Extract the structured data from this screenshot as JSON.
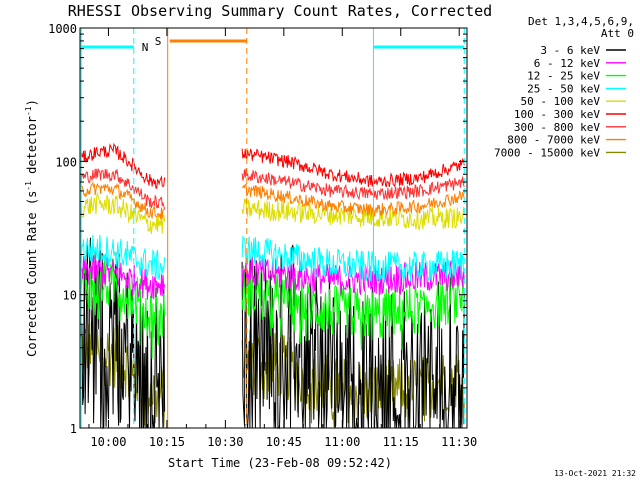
{
  "chart_data": {
    "type": "line",
    "title": "RHESSI Observing Summary Count Rates, Corrected",
    "xlabel": "Start Time (23-Feb-08 09:52:42)",
    "ylabel_main": "Corrected Count Rate (s",
    "ylabel_sup1": "-1",
    "ylabel_mid": " detector",
    "ylabel_sup2": "-1",
    "ylabel_end": ")",
    "yscale": "log",
    "ylim": [
      1,
      1000
    ],
    "xlim_min": [
      52.7,
      152.0
    ],
    "x_ticks": [
      {
        "min": 60,
        "label": "10:00"
      },
      {
        "min": 75,
        "label": "10:15"
      },
      {
        "min": 90,
        "label": "10:30"
      },
      {
        "min": 105,
        "label": "10:45"
      },
      {
        "min": 120,
        "label": "11:00"
      },
      {
        "min": 135,
        "label": "11:15"
      },
      {
        "min": 150,
        "label": "11:30"
      }
    ],
    "y_ticks": [
      {
        "value": 1,
        "label": "1"
      },
      {
        "value": 10,
        "label": "10"
      },
      {
        "value": 100,
        "label": "100"
      },
      {
        "value": 1000,
        "label": "1000"
      }
    ],
    "legend_header": [
      "Det 1,3,4,5,6,9,",
      "Att 0"
    ],
    "series": [
      {
        "name": "3 - 6 keV",
        "color": "#000000",
        "segA": [
          6,
          5.5,
          4.8,
          3.5,
          2.5,
          2.5
        ],
        "segB": [
          4,
          5,
          3,
          2.5,
          2.5,
          3
        ],
        "noise": 0.7
      },
      {
        "name": "6 - 12 keV",
        "color": "#ff00ff",
        "segA": [
          15,
          15,
          14.5,
          13,
          12,
          12.5
        ],
        "segB": [
          15,
          14,
          13,
          13,
          13.5,
          14
        ],
        "noise": 0.12
      },
      {
        "name": "12 - 25 keV",
        "color": "#00ff00",
        "segA": [
          12,
          12.5,
          12,
          10,
          7,
          7
        ],
        "segB": [
          11,
          9,
          7.5,
          7,
          8,
          10
        ],
        "noise": 0.2
      },
      {
        "name": "25 - 50 keV",
        "color": "#00ffff",
        "segA": [
          22,
          22,
          21,
          19,
          17,
          16
        ],
        "segB": [
          22,
          19,
          17,
          16,
          16,
          17
        ],
        "noise": 0.12
      },
      {
        "name": "50 - 100 keV",
        "color": "#dddd00",
        "segA": [
          45,
          48,
          47,
          40,
          34,
          34
        ],
        "segB": [
          44,
          42,
          40,
          38,
          37,
          38
        ],
        "noise": 0.08
      },
      {
        "name": "100 - 300 keV",
        "color": "#ff0000",
        "segA": [
          105,
          118,
          120,
          95,
          72,
          68
        ],
        "segB": [
          115,
          100,
          80,
          70,
          75,
          95
        ],
        "noise": 0.05
      },
      {
        "name": "300 - 800 keV",
        "color": "#ff3333",
        "segA": [
          75,
          80,
          80,
          65,
          50,
          48
        ],
        "segB": [
          80,
          70,
          60,
          57,
          60,
          70
        ],
        "noise": 0.05
      },
      {
        "name": "800 - 7000 keV",
        "color": "#ff7f00",
        "segA": [
          60,
          63,
          62,
          52,
          42,
          40
        ],
        "segB": [
          62,
          54,
          46,
          43,
          46,
          55
        ],
        "noise": 0.05
      },
      {
        "name": "7000 - 15000 keV",
        "color": "#888800",
        "segA": [
          4,
          3.8,
          3.5,
          2.7,
          2,
          1.7
        ],
        "segB": [
          3.5,
          2.8,
          2,
          1.8,
          2,
          2.5
        ],
        "noise": 0.25
      }
    ],
    "annotations": [
      {
        "type": "night-bar",
        "label": "N",
        "color": "#00ffff",
        "start_min": 53.0,
        "end_min": 66.5
      },
      {
        "type": "night-bar",
        "label": "",
        "color": "#00ffff",
        "start_min": 128.0,
        "end_min": 151.3
      },
      {
        "type": "saa-bar",
        "label": "S",
        "color": "#ff7f00",
        "start_min": 75.2,
        "end_min": 95.5
      }
    ],
    "data_gap_min": [
      74.8,
      94.2
    ],
    "segment_A_min": [
      53.0,
      74.6
    ],
    "segment_B_min": [
      94.3,
      151.3
    ]
  },
  "footer": {
    "stamp": "13-Oct-2021 21:32"
  }
}
